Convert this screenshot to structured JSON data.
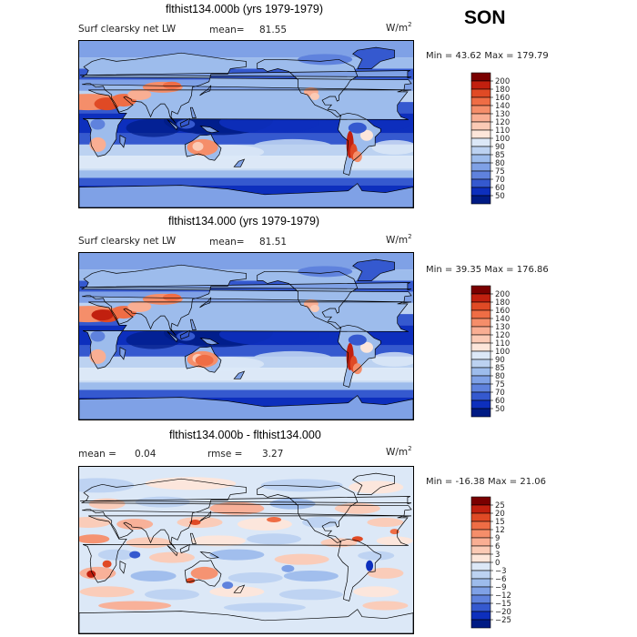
{
  "season": "SON",
  "panels": [
    {
      "title": "flthist134.000b (yrs 1979-1979)",
      "left_label": "Surf clearsky net LW",
      "stat1_label": "mean=",
      "stat1_value": "81.55",
      "stat2_label": "",
      "stat2_value": "",
      "units_base": "W/m",
      "units_exp": "2",
      "min_label": "Min =",
      "min_value": "43.62",
      "max_label": "Max =",
      "max_value": "179.79",
      "colorbar": {
        "levels": [
          "200",
          "180",
          "160",
          "140",
          "130",
          "120",
          "110",
          "100",
          "90",
          "85",
          "80",
          "75",
          "70",
          "60",
          "50"
        ],
        "colors": [
          "#7a0000",
          "#c1200f",
          "#e04a25",
          "#ef6d45",
          "#f58e6a",
          "#f9ae93",
          "#fbcab5",
          "#fde6da",
          "#dce8f7",
          "#bcd2f1",
          "#9dbcec",
          "#7fa1e6",
          "#5f82dd",
          "#3559cf",
          "#0d2fbd",
          "#001b84"
        ]
      },
      "palette": "abs"
    },
    {
      "title": "flthist134.000 (yrs 1979-1979)",
      "left_label": "Surf clearsky net LW",
      "stat1_label": "mean=",
      "stat1_value": "81.51",
      "stat2_label": "",
      "stat2_value": "",
      "units_base": "W/m",
      "units_exp": "2",
      "min_label": "Min =",
      "min_value": "39.35",
      "max_label": "Max =",
      "max_value": "176.86",
      "colorbar": {
        "levels": [
          "200",
          "180",
          "160",
          "140",
          "130",
          "120",
          "110",
          "100",
          "90",
          "85",
          "80",
          "75",
          "70",
          "60",
          "50"
        ],
        "colors": [
          "#7a0000",
          "#c1200f",
          "#e04a25",
          "#ef6d45",
          "#f58e6a",
          "#f9ae93",
          "#fbcab5",
          "#fde6da",
          "#dce8f7",
          "#bcd2f1",
          "#9dbcec",
          "#7fa1e6",
          "#5f82dd",
          "#3559cf",
          "#0d2fbd",
          "#001b84"
        ]
      },
      "palette": "abs"
    },
    {
      "title": "flthist134.000b - flthist134.000",
      "left_label": "",
      "stat1_label": "mean =",
      "stat1_value": "0.04",
      "stat2_label": "rmse =",
      "stat2_value": "3.27",
      "units_base": "W/m",
      "units_exp": "2",
      "min_label": "Min =",
      "min_value": "-16.38",
      "max_label": "Max =",
      "max_value": "21.06",
      "colorbar": {
        "levels": [
          "25",
          "20",
          "15",
          "12",
          "9",
          "6",
          "3",
          "0",
          "−3",
          "−6",
          "−9",
          "−12",
          "−15",
          "−20",
          "−25"
        ],
        "colors": [
          "#7a0000",
          "#c1200f",
          "#e04a25",
          "#ef6d45",
          "#f58e6a",
          "#f9ae93",
          "#fbcab5",
          "#fde6da",
          "#dce8f7",
          "#bcd2f1",
          "#9dbcec",
          "#7fa1e6",
          "#5f82dd",
          "#3559cf",
          "#0d2fbd",
          "#001b84"
        ]
      },
      "palette": "diff"
    }
  ],
  "chart_data": [
    {
      "type": "heatmap",
      "title": "flthist134.000b (yrs 1979-1979)",
      "subtitle": "Surf clearsky net LW",
      "season": "SON",
      "units": "W/m2",
      "mean": 81.55,
      "min": 43.62,
      "max": 179.79,
      "contour_levels": [
        50,
        60,
        70,
        75,
        80,
        85,
        90,
        100,
        110,
        120,
        130,
        140,
        160,
        180,
        200
      ]
    },
    {
      "type": "heatmap",
      "title": "flthist134.000 (yrs 1979-1979)",
      "subtitle": "Surf clearsky net LW",
      "season": "SON",
      "units": "W/m2",
      "mean": 81.51,
      "min": 39.35,
      "max": 176.86,
      "contour_levels": [
        50,
        60,
        70,
        75,
        80,
        85,
        90,
        100,
        110,
        120,
        130,
        140,
        160,
        180,
        200
      ]
    },
    {
      "type": "heatmap",
      "title": "flthist134.000b - flthist134.000",
      "season": "SON",
      "units": "W/m2",
      "mean": 0.04,
      "rmse": 3.27,
      "min": -16.38,
      "max": 21.06,
      "contour_levels": [
        -25,
        -20,
        -15,
        -12,
        -9,
        -6,
        -3,
        0,
        3,
        6,
        9,
        12,
        15,
        20,
        25
      ]
    }
  ]
}
